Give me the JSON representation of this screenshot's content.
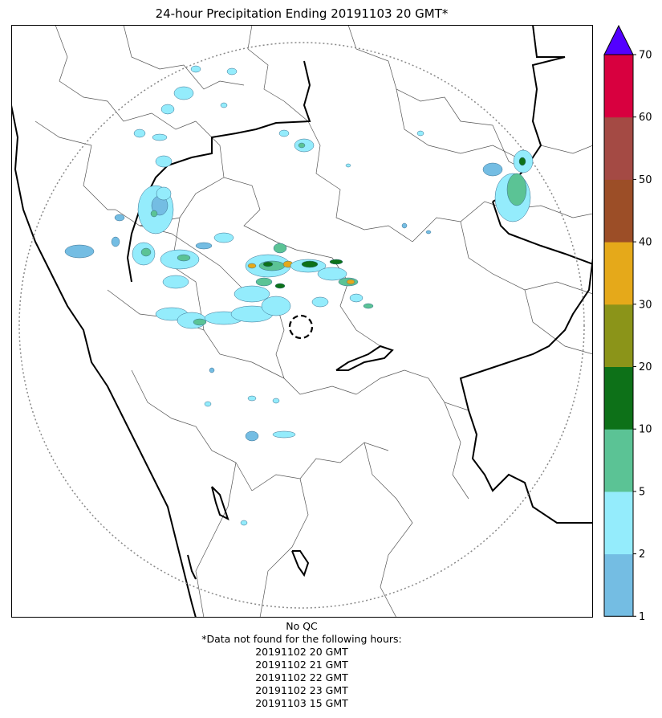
{
  "title": "24-hour Precipitation Ending 20191103 20 GMT*",
  "footer": {
    "qc_note": "No QC",
    "missing_header": "*Data not found for the following hours:",
    "missing_hours": [
      "20191102 20 GMT",
      "20191102 21 GMT",
      "20191102 22 GMT",
      "20191102 23 GMT",
      "20191103 15 GMT"
    ]
  },
  "colorbar": {
    "ticks": [
      "1",
      "2",
      "5",
      "10",
      "20",
      "30",
      "40",
      "50",
      "60",
      "70"
    ],
    "colors": [
      "#74bde3",
      "#94ecfc",
      "#5bc395",
      "#0d7118",
      "#8b9419",
      "#e5a91a",
      "#9c4e27",
      "#a44a44",
      "#d8003f"
    ],
    "extend_color": "#5300ff"
  },
  "map": {
    "background": "#ffffff",
    "range_ring": "dotted",
    "radar_site": "dashed-circle"
  }
}
